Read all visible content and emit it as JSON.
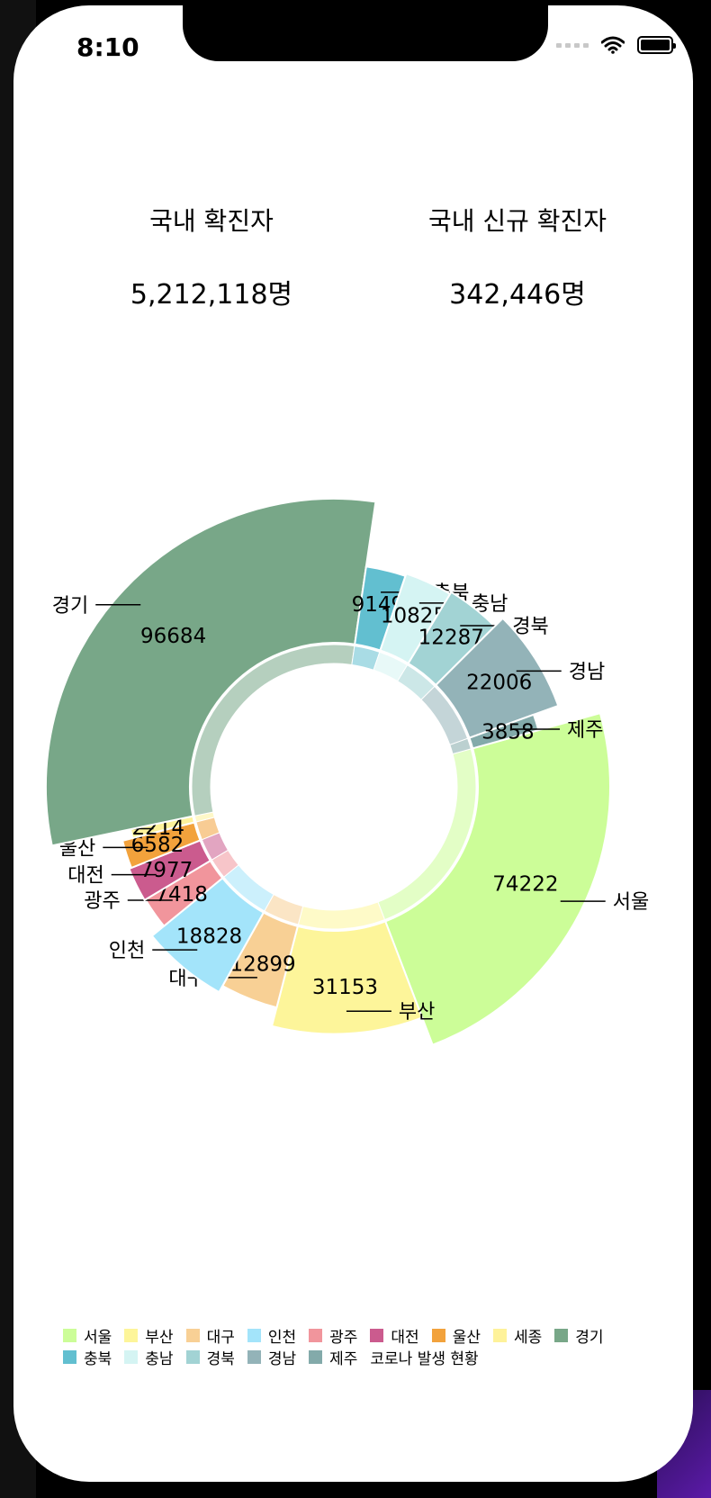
{
  "status_bar": {
    "time": "8:10"
  },
  "stats": {
    "total_label": "국내 확진자",
    "total_value": "5,212,118명",
    "new_label": "국내 신규 확진자",
    "new_value": "342,446명"
  },
  "chart_data": {
    "type": "pie",
    "title": "코로나 발생 현황",
    "categories": [
      "서울",
      "부산",
      "대구",
      "인천",
      "광주",
      "대전",
      "울산",
      "세종",
      "경기",
      "충북",
      "충남",
      "경북",
      "경남",
      "제주"
    ],
    "values": [
      74222,
      31153,
      12899,
      18828,
      7418,
      7977,
      6582,
      2214,
      96684,
      9149,
      10825,
      12287,
      22006,
      3858
    ],
    "colors": [
      "#ccfd98",
      "#fdf59a",
      "#f8d095",
      "#a3e4fa",
      "#f1959c",
      "#cb5b8e",
      "#f2a23c",
      "#fef29a",
      "#78a788",
      "#62bfd0",
      "#d5f4f3",
      "#a2d3d4",
      "#93b3b8",
      "#83aaaa"
    ],
    "legend_position": "bottom"
  },
  "legend_label": "코로나 발생 현황"
}
